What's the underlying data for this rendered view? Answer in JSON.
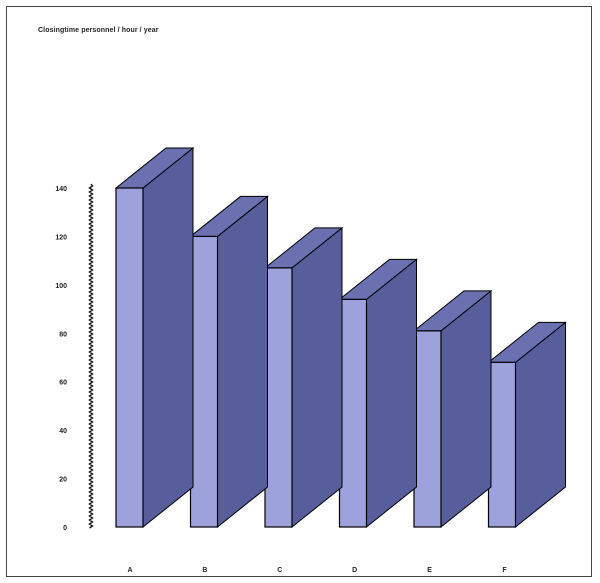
{
  "chart_data": {
    "type": "bar",
    "title": "Closingtime personnel / hour / year",
    "categories": [
      "A",
      "B",
      "C",
      "D",
      "E",
      "F"
    ],
    "values": [
      140,
      120,
      107,
      94,
      81,
      68
    ],
    "ylim": [
      0,
      140
    ],
    "yticks": [
      0,
      20,
      40,
      60,
      80,
      100,
      120,
      140
    ],
    "xlabel": "",
    "ylabel": "",
    "grid": false,
    "legend": "none",
    "colors": {
      "front": "#9da2dc",
      "side": "#585d9c",
      "top": "#6a70b0",
      "edge": "#000000"
    }
  }
}
